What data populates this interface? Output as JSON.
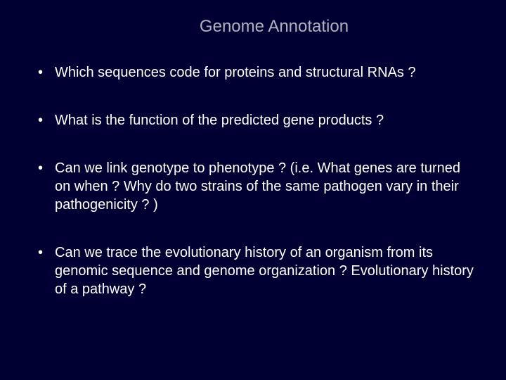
{
  "background_color": "#000033",
  "text_color": "#ffffff",
  "title_color": "#b0b0c0",
  "title_fontsize": 24,
  "body_fontsize": 20,
  "font_family": "Arial",
  "title": "Genome Annotation",
  "bullets": [
    "Which sequences code for proteins and structural RNAs ?",
    "What is the function of the predicted gene products ?",
    "Can we link genotype to phenotype ? (i.e. What genes are turned on when ? Why do two strains of the same pathogen vary in their pathogenicity ? )",
    "Can we trace the evolutionary history of an organism from its genomic sequence and genome organization ? Evolutionary history of a pathway ?"
  ]
}
